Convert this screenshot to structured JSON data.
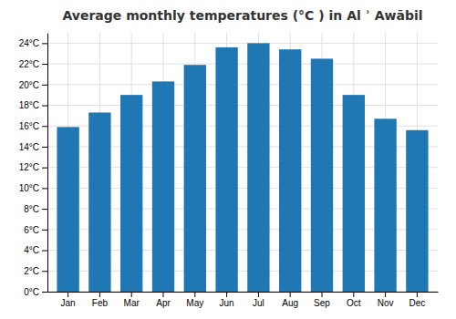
{
  "chart_data": {
    "type": "bar",
    "title": "Average monthly temperatures (°C ) in Al ʾ Awābil",
    "categories": [
      "Jan",
      "Feb",
      "Mar",
      "Apr",
      "May",
      "Jun",
      "Jul",
      "Aug",
      "Sep",
      "Oct",
      "Nov",
      "Dec"
    ],
    "values": [
      15.9,
      17.3,
      19.0,
      20.3,
      21.9,
      23.6,
      24.0,
      23.4,
      22.5,
      19.0,
      16.7,
      15.6
    ],
    "ylim": [
      0,
      25
    ],
    "yticks": [
      {
        "value": 0,
        "label": "0°C"
      },
      {
        "value": 2,
        "label": "2°C"
      },
      {
        "value": 4,
        "label": "4°C"
      },
      {
        "value": 6,
        "label": "6°C"
      },
      {
        "value": 8,
        "label": "8°C"
      },
      {
        "value": 10,
        "label": "10°C"
      },
      {
        "value": 12,
        "label": "12°C"
      },
      {
        "value": 14,
        "label": "14°C"
      },
      {
        "value": 16,
        "label": "16°C"
      },
      {
        "value": 18,
        "label": "18°C"
      },
      {
        "value": 20,
        "label": "20°C"
      },
      {
        "value": 22,
        "label": "22°C"
      },
      {
        "value": 24,
        "label": "24°C"
      }
    ],
    "grid": true
  }
}
